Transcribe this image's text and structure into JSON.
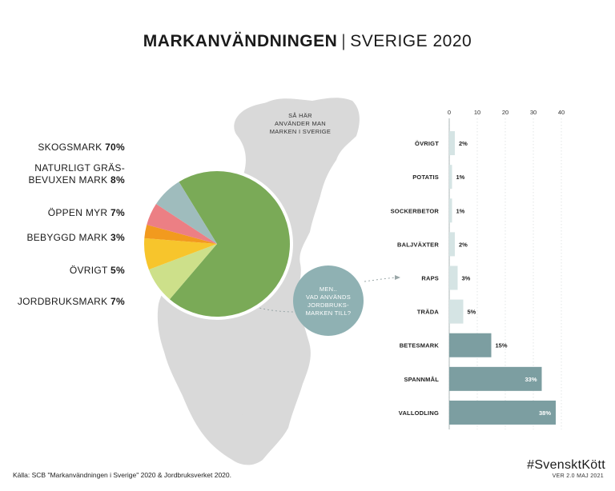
{
  "header": {
    "title_bold": "MARKANVÄNDNINGEN",
    "separator": "|",
    "title_rest": "SVERIGE 2020"
  },
  "map_caption": [
    "SÅ HÄR",
    "ANVÄNDER MAN",
    "MARKEN I SVERIGE"
  ],
  "bubble": [
    "MEN..",
    "VAD ANVÄNDS",
    "JORDBRUKS-",
    "MARKEN TILL?"
  ],
  "pie_labels": [
    {
      "lines": [
        "SKOGSMARK"
      ],
      "value": "70%"
    },
    {
      "lines": [
        "NATURLIGT GRÄS-",
        "BEVUXEN MARK"
      ],
      "value": "8%"
    },
    {
      "lines": [
        "ÖPPEN MYR"
      ],
      "value": "7%"
    },
    {
      "lines": [
        "BEBYGGD MARK"
      ],
      "value": "3%"
    },
    {
      "lines": [
        "ÖVRIGT"
      ],
      "value": "5%"
    },
    {
      "lines": [
        "JORDBRUKSMARK"
      ],
      "value": "7%"
    }
  ],
  "chart_data": [
    {
      "type": "pie",
      "slices": [
        {
          "label": "SKOGSMARK",
          "value": 70,
          "color": "#7aaa57"
        },
        {
          "label": "NATURLIGT GRÄSBEVUXEN MARK",
          "value": 8,
          "color": "#cde08a"
        },
        {
          "label": "ÖPPEN MYR",
          "value": 7,
          "color": "#f7c52c"
        },
        {
          "label": "BEBYGGD MARK",
          "value": 3,
          "color": "#f29a1e"
        },
        {
          "label": "ÖVRIGT",
          "value": 5,
          "color": "#ec7f84"
        },
        {
          "label": "JORDBRUKSMARK",
          "value": 7,
          "color": "#9fbcbd"
        }
      ]
    },
    {
      "type": "bar",
      "orientation": "horizontal",
      "categories": [
        "ÖVRIGT",
        "POTATIS",
        "SOCKERBETOR",
        "BALJVÄXTER",
        "RAPS",
        "TRÄDA",
        "BETESMARK",
        "SPANNMÅL",
        "VALLODLING"
      ],
      "values": [
        2,
        1,
        1,
        2,
        3,
        5,
        15,
        33,
        38
      ],
      "value_labels": [
        "2%",
        "1%",
        "1%",
        "2%",
        "3%",
        "5%",
        "15%",
        "33%",
        "38%"
      ],
      "xticks": [
        "0",
        "10",
        "20",
        "30",
        "40"
      ],
      "xlim": [
        0,
        40
      ],
      "bar_color_light": "#d5e4e4",
      "bar_color_dark": "#7c9ea1"
    }
  ],
  "footer": {
    "source": "Källa: SCB \"Markanvändningen i Sverige\" 2020 & Jordbruksverket 2020.",
    "brand": "#SvensktKött",
    "version": "VER 2.0 MAJ 2021"
  },
  "colors": {
    "map": "#d9d9d9",
    "bubble": "#8fb1b3"
  }
}
